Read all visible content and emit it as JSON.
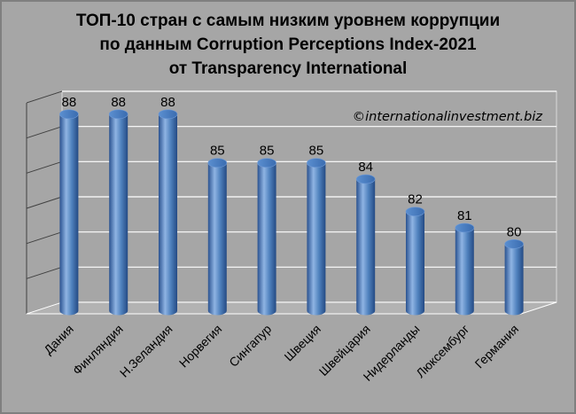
{
  "chart_data": {
    "type": "bar",
    "title_lines": [
      "ТОП-10 стран с самым низким уровнем коррупции",
      "по данным Corruption Perceptions Index-2021",
      "от Transparency International"
    ],
    "credit": "©internationalinvestment.biz",
    "categories": [
      "Дания",
      "Финляндия",
      "Н.Зеландия",
      "Норвегия",
      "Сингапур",
      "Швеция",
      "Швейцария",
      "Нидерланды",
      "Люксембург",
      "Германия"
    ],
    "values": [
      88,
      88,
      88,
      85,
      85,
      85,
      84,
      82,
      81,
      80
    ],
    "ylim": [
      76,
      89
    ],
    "grid": true,
    "legend": "none",
    "colors": {
      "bar": "#4f81bd",
      "bar_dark": "#2a5290",
      "bar_light": "#8fb4e3",
      "background": "#a6a6a6",
      "grid": "#ffffff"
    }
  }
}
